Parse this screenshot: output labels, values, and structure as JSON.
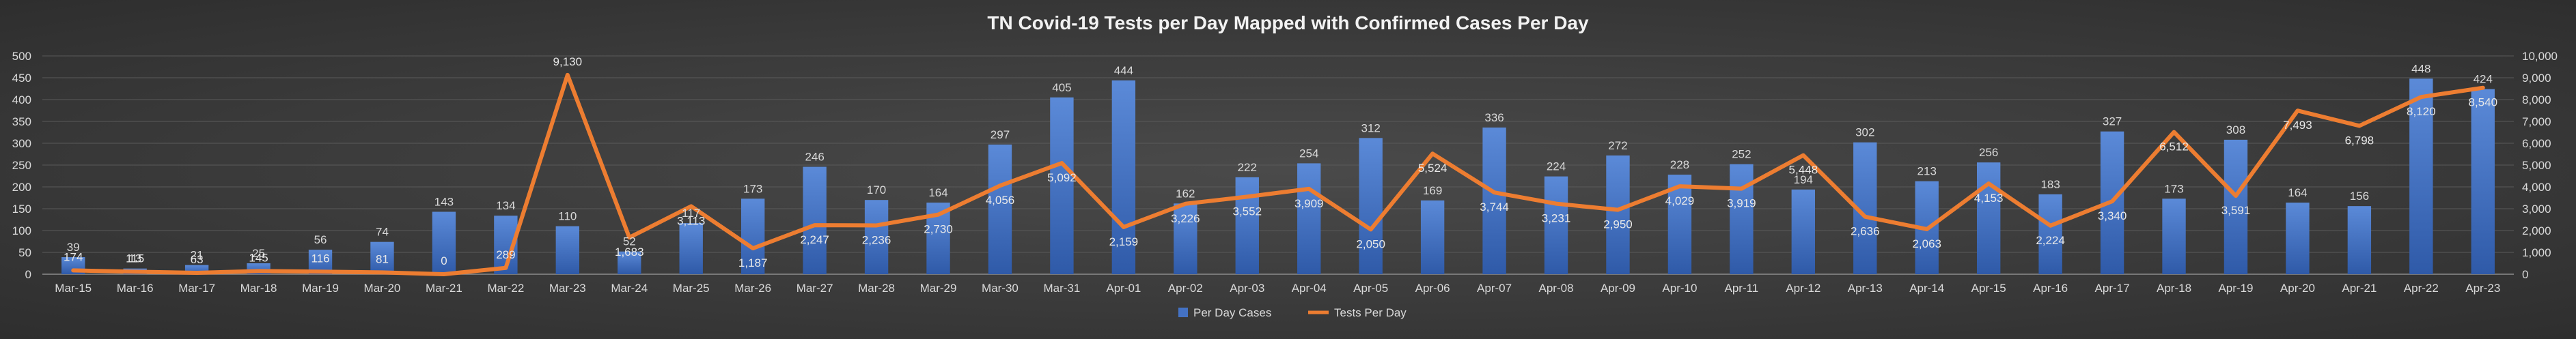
{
  "chart_data": {
    "type": "bar+line",
    "title": "TN Covid-19 Tests per Day Mapped with Confirmed Cases Per Day",
    "categories": [
      "Mar-15",
      "Mar-16",
      "Mar-17",
      "Mar-18",
      "Mar-19",
      "Mar-20",
      "Mar-21",
      "Mar-22",
      "Mar-23",
      "Mar-24",
      "Mar-25",
      "Mar-26",
      "Mar-27",
      "Mar-28",
      "Mar-29",
      "Mar-30",
      "Mar-31",
      "Apr-01",
      "Apr-02",
      "Apr-03",
      "Apr-04",
      "Apr-05",
      "Apr-06",
      "Apr-07",
      "Apr-08",
      "Apr-09",
      "Apr-10",
      "Apr-11",
      "Apr-12",
      "Apr-13",
      "Apr-14",
      "Apr-15",
      "Apr-16",
      "Apr-17",
      "Apr-18",
      "Apr-19",
      "Apr-20",
      "Apr-21",
      "Apr-22",
      "Apr-23"
    ],
    "series": [
      {
        "name": "Per Day Cases",
        "type": "bar",
        "axis": "left",
        "color": "#4472c4",
        "values": [
          39,
          13,
          21,
          25,
          56,
          74,
          143,
          134,
          110,
          52,
          117,
          173,
          246,
          170,
          164,
          297,
          405,
          444,
          162,
          222,
          254,
          312,
          169,
          336,
          224,
          272,
          228,
          252,
          194,
          302,
          213,
          256,
          183,
          327,
          173,
          308,
          164,
          156,
          448,
          424
        ],
        "labels": [
          "39",
          "13",
          "21",
          "25",
          "56",
          "74",
          "143",
          "134",
          "110",
          "52",
          "117",
          "173",
          "246",
          "170",
          "164",
          "297",
          "405",
          "444",
          "162",
          "222",
          "254",
          "312",
          "169",
          "336",
          "224",
          "272",
          "228",
          "252",
          "194",
          "302",
          "213",
          "256",
          "183",
          "327",
          "173",
          "308",
          "164",
          "156",
          "448",
          "424"
        ]
      },
      {
        "name": "Tests Per Day",
        "type": "line",
        "axis": "right",
        "color": "#ed7d31",
        "values": [
          174,
          115,
          63,
          145,
          116,
          81,
          0,
          289,
          9130,
          1683,
          3113,
          1187,
          2247,
          2236,
          2730,
          4056,
          5092,
          2159,
          3226,
          3552,
          3909,
          2050,
          5524,
          3744,
          3231,
          2950,
          4029,
          3919,
          5448,
          2636,
          2063,
          4153,
          2224,
          3340,
          6512,
          3591,
          7493,
          6798,
          8120,
          8540
        ],
        "labels": [
          "174",
          "115",
          "63",
          "145",
          "116",
          "81",
          "0",
          "289",
          "9,130",
          "1,683",
          "3,113",
          "1,187",
          "2,247",
          "2,236",
          "2,730",
          "4,056",
          "5,092",
          "2,159",
          "3,226",
          "3,552",
          "3,909",
          "2,050",
          "5,524",
          "3,744",
          "3,231",
          "2,950",
          "4,029",
          "3,919",
          "5,448",
          "2,636",
          "2,063",
          "4,153",
          "2,224",
          "3,340",
          "6,512",
          "3,591",
          "7,493",
          "6,798",
          "8,120",
          "8,540"
        ]
      }
    ],
    "y_left": {
      "range": [
        0,
        500
      ],
      "ticks": [
        "0",
        "50",
        "100",
        "150",
        "200",
        "250",
        "300",
        "350",
        "400",
        "450",
        "500"
      ]
    },
    "y_right": {
      "range": [
        0,
        10000
      ],
      "ticks": [
        "0",
        "1,000",
        "2,000",
        "3,000",
        "4,000",
        "5,000",
        "6,000",
        "7,000",
        "8,000",
        "9,000",
        "10,000"
      ]
    },
    "grid": true,
    "legend": {
      "placement": "bottom",
      "entries": [
        "Per Day Cases",
        "Tests Per Day"
      ]
    },
    "colors": {
      "background": "#3b3b3b",
      "grid": "#5a5a5a",
      "text": "#d9d9d9",
      "title": "#f2f2f2",
      "bar": "#4472c4",
      "line": "#ed7d31"
    }
  }
}
